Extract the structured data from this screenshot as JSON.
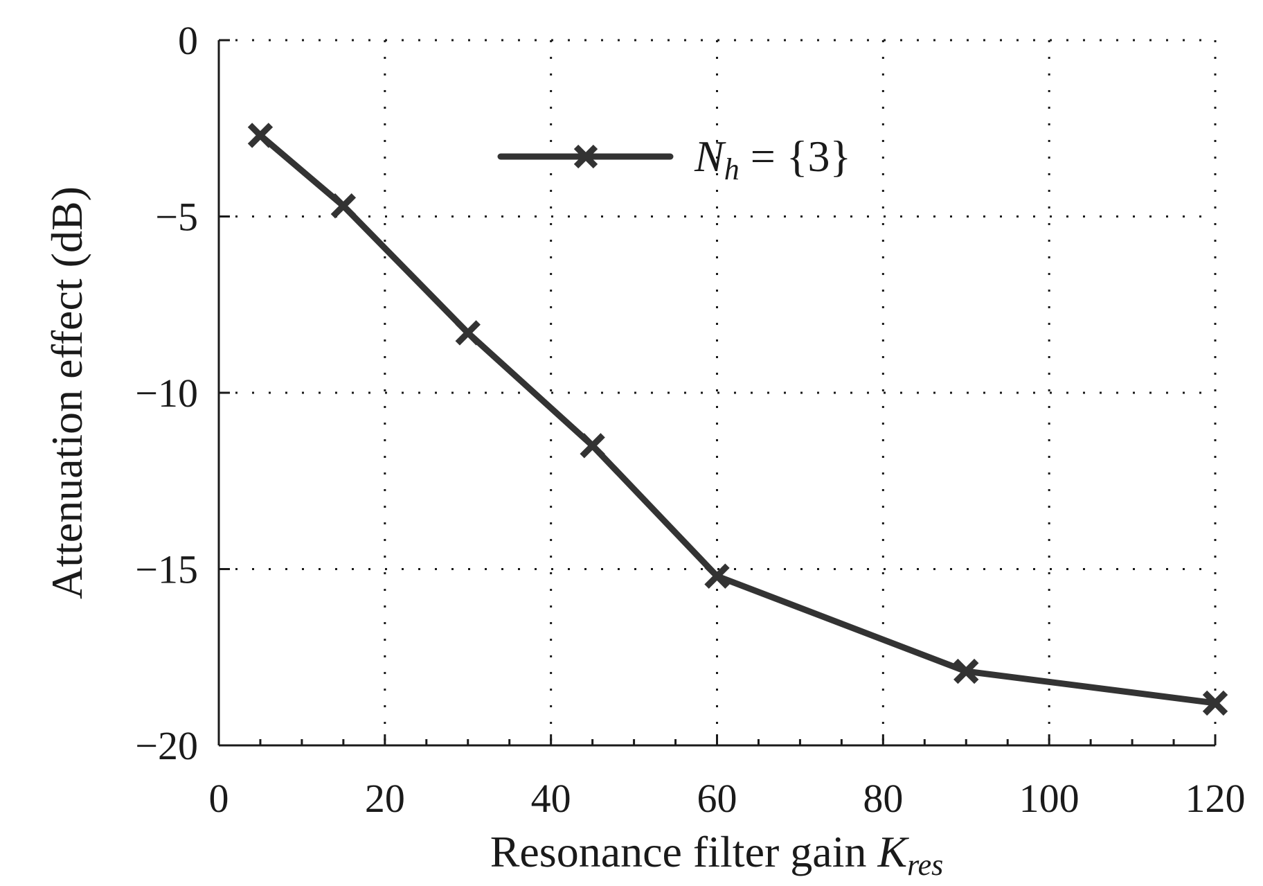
{
  "chart_data": {
    "type": "line",
    "xlabel": "Resonance filter gain",
    "xlabel_symbol": "K",
    "xlabel_subscript": "res",
    "ylabel": "Attenuation effect (dB)",
    "xlim": [
      0,
      120
    ],
    "ylim": [
      -20,
      0
    ],
    "xticks": [
      0,
      20,
      40,
      60,
      80,
      100,
      120
    ],
    "yticks": [
      0,
      -5,
      -10,
      -15,
      -20
    ],
    "xtick_labels": [
      "0",
      "20",
      "40",
      "60",
      "80",
      "100",
      "120"
    ],
    "ytick_labels": [
      "0",
      "−5",
      "−10",
      "−15",
      "−20"
    ],
    "grid": true,
    "legend_position": "top-center",
    "series": [
      {
        "name": "N_h = {3}",
        "legend_symbol": "N",
        "legend_subscript": "h",
        "legend_rest": " = {3}",
        "color": "#333333",
        "marker": "x",
        "x": [
          5,
          15,
          30,
          45,
          60,
          90,
          120
        ],
        "y": [
          -2.7,
          -4.7,
          -8.3,
          -11.5,
          -15.2,
          -17.9,
          -18.8
        ]
      }
    ]
  }
}
